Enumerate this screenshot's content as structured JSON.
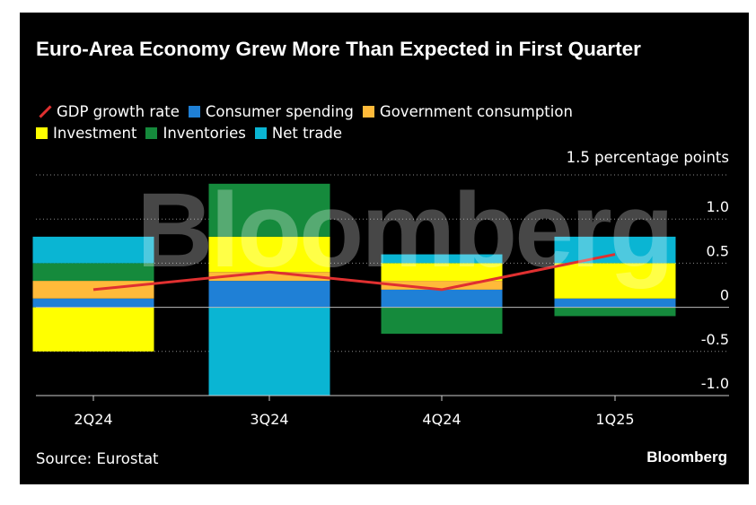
{
  "title": "Euro-Area Economy Grew More Than Expected in First Quarter",
  "legend": {
    "gdp": "GDP growth rate",
    "consumer": "Consumer spending",
    "government": "Government consumption",
    "investment": "Investment",
    "inventories": "Inventories",
    "net_trade": "Net trade"
  },
  "unit_label": "1.5 percentage points",
  "source": "Source: Eurostat",
  "brand": "Bloomberg",
  "watermark": "Bloomberg",
  "colors": {
    "background": "#000000",
    "gdp": "#e03030",
    "consumer": "#1f80d6",
    "government": "#ffba3a",
    "investment": "#ffff00",
    "inventories": "#158a3c",
    "net_trade": "#0ab5d3"
  },
  "chart_data": {
    "type": "bar",
    "stacked": true,
    "categories": [
      "2Q24",
      "3Q24",
      "4Q24",
      "1Q25"
    ],
    "series": [
      {
        "name": "Consumer spending",
        "key": "consumer",
        "values": [
          0.1,
          0.3,
          0.2,
          0.1
        ]
      },
      {
        "name": "Government consumption",
        "key": "government",
        "values": [
          0.2,
          0.1,
          0.1,
          0.0
        ]
      },
      {
        "name": "Investment",
        "key": "investment",
        "values": [
          -0.5,
          0.4,
          0.2,
          0.4
        ]
      },
      {
        "name": "Inventories",
        "key": "inventories",
        "values": [
          0.2,
          0.6,
          -0.3,
          -0.1
        ]
      },
      {
        "name": "Net trade",
        "key": "net_trade",
        "values": [
          0.3,
          -1.0,
          0.1,
          0.3
        ]
      }
    ],
    "line": {
      "name": "GDP growth rate",
      "key": "gdp",
      "values": [
        0.2,
        0.4,
        0.2,
        0.6
      ]
    },
    "ylim": [
      -1.0,
      1.5
    ],
    "yticks": [
      1.0,
      0.5,
      0,
      -0.5,
      -1.0
    ],
    "ytick_labels": [
      "1.0",
      "0.5",
      "0",
      "-0.5",
      "-1.0"
    ],
    "grid": true,
    "legend_position": "top-left"
  }
}
